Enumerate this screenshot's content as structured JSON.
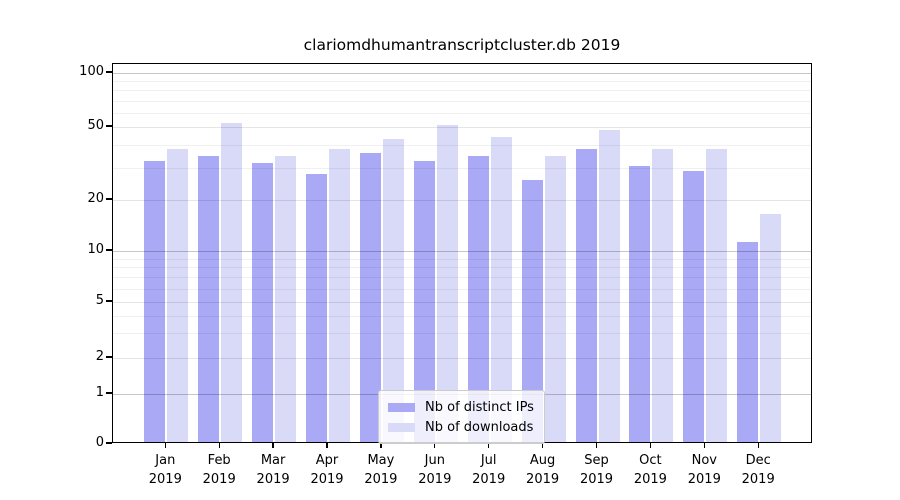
{
  "chart_data": {
    "type": "bar",
    "title": "clariomdhumantranscriptcluster.db 2019",
    "categories": [
      "Jan",
      "Feb",
      "Mar",
      "Apr",
      "May",
      "Jun",
      "Jul",
      "Aug",
      "Sep",
      "Oct",
      "Nov",
      "Dec"
    ],
    "category_year": "2019",
    "series": [
      {
        "name": "Nb of distinct IPs",
        "color": "#a9a9f6",
        "values": [
          32,
          34,
          31,
          27,
          35,
          32,
          34,
          25,
          37,
          30,
          28,
          11
        ]
      },
      {
        "name": "Nb of downloads",
        "color": "#d9d9f8",
        "values": [
          37,
          51,
          34,
          37,
          42,
          50,
          43,
          34,
          47,
          37,
          37,
          16
        ]
      }
    ],
    "xlabel": "",
    "ylabel": "",
    "yscale": "log-like (0,1,2,5,10,20,50,100)",
    "ylim": [
      0,
      100
    ],
    "yticks": [
      0,
      1,
      2,
      5,
      10,
      20,
      50,
      100
    ],
    "ytick_major_grid": [
      1,
      10,
      100
    ],
    "yminor_gridlines": [
      3,
      4,
      6,
      7,
      8,
      9,
      30,
      40,
      60,
      70,
      80,
      90
    ],
    "grid": true,
    "legend_position": "bottom-center"
  }
}
